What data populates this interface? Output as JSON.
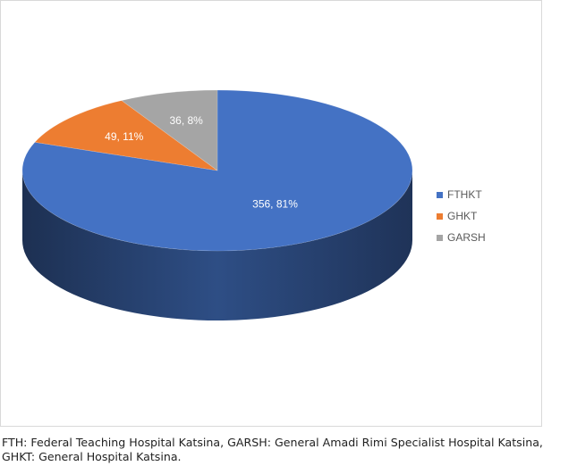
{
  "chart_data": {
    "type": "pie",
    "style": "3d",
    "slices": [
      {
        "name": "FTHKT",
        "value": 356,
        "percent": 81,
        "label": "356, 81%",
        "color": "#4472c4"
      },
      {
        "name": "GHKT",
        "value": 49,
        "percent": 11,
        "label": "49, 11%",
        "color": "#ed7d31"
      },
      {
        "name": "GARSH",
        "value": 36,
        "percent": 8,
        "label": "36, 8%",
        "color": "#a5a5a5"
      }
    ],
    "legend_position": "right"
  },
  "caption": "FTH: Federal Teaching Hospital Katsina, GARSH:  General Amadi Rimi Specialist Hospital Katsina, GHKT: General Hospital Katsina."
}
